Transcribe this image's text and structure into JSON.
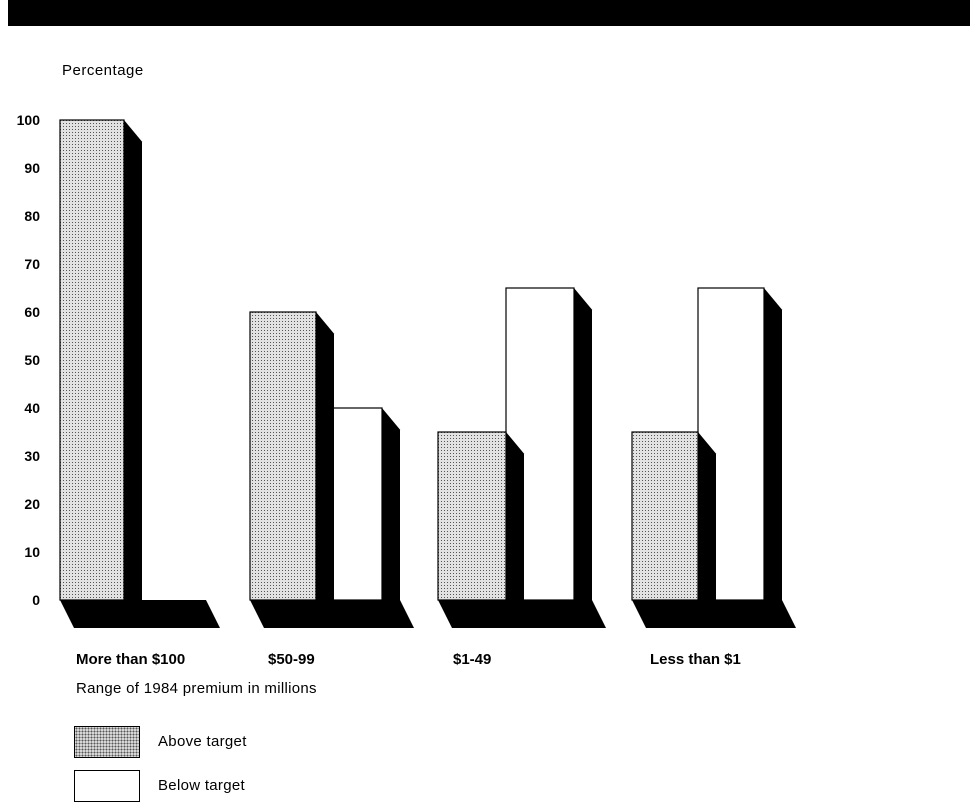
{
  "chart_data": {
    "type": "bar",
    "title": "",
    "ylabel": "Percentage",
    "xlabel": "Range of 1984 premium in millions",
    "ylim": [
      0,
      100
    ],
    "yticks": [
      0,
      10,
      20,
      30,
      40,
      50,
      60,
      70,
      80,
      90,
      100
    ],
    "categories": [
      "More than $100",
      "$50-99",
      "$1-49",
      "Less than $1"
    ],
    "series": [
      {
        "name": "Above target",
        "values": [
          100,
          60,
          35,
          35
        ]
      },
      {
        "name": "Below target",
        "values": [
          0,
          40,
          65,
          65
        ]
      }
    ],
    "legend_position": "bottom-left",
    "grid": false,
    "colors": {
      "above": "#d9d9d9",
      "below": "#ffffff",
      "shadow": "#000000"
    }
  }
}
